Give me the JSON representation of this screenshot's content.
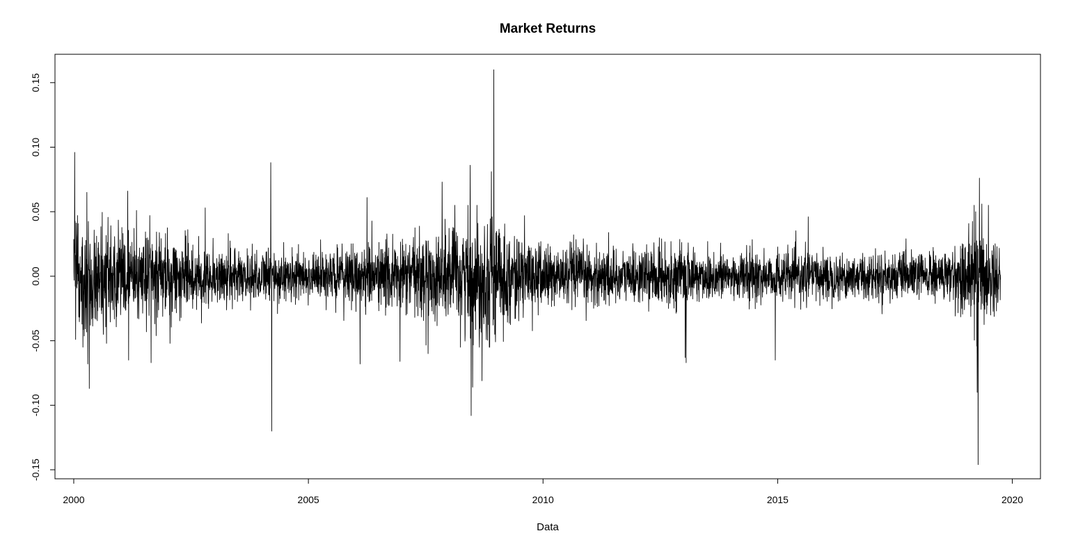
{
  "chart_data": {
    "type": "line",
    "title": "Market Returns",
    "xlabel": "Data",
    "ylabel": "",
    "xlim": [
      1999.6,
      2020.6
    ],
    "ylim": [
      -0.157,
      0.172
    ],
    "grid": false,
    "legend": "none",
    "line_color": "#000000",
    "x_ticks": [
      2000,
      2005,
      2010,
      2015,
      2020
    ],
    "x_tick_labels": [
      "2000",
      "2005",
      "2010",
      "2015",
      "2020"
    ],
    "y_ticks": [
      -0.15,
      -0.1,
      -0.05,
      0.0,
      0.05,
      0.1,
      0.15
    ],
    "y_tick_labels": [
      "-0.15",
      "-0.10",
      "-0.05",
      "0.00",
      "0.05",
      "0.10",
      "0.15"
    ],
    "series": [
      {
        "x_start": 2000.0,
        "x_end": 2019.75,
        "volatility_profile": [
          {
            "year": 2000.0,
            "sigma": 0.024
          },
          {
            "year": 2000.6,
            "sigma": 0.018
          },
          {
            "year": 2001.5,
            "sigma": 0.016
          },
          {
            "year": 2002.5,
            "sigma": 0.013
          },
          {
            "year": 2003.5,
            "sigma": 0.011
          },
          {
            "year": 2004.5,
            "sigma": 0.0095
          },
          {
            "year": 2005.5,
            "sigma": 0.01
          },
          {
            "year": 2006.3,
            "sigma": 0.012
          },
          {
            "year": 2007.5,
            "sigma": 0.016
          },
          {
            "year": 2008.3,
            "sigma": 0.022
          },
          {
            "year": 2008.8,
            "sigma": 0.024
          },
          {
            "year": 2009.5,
            "sigma": 0.014
          },
          {
            "year": 2010.5,
            "sigma": 0.012
          },
          {
            "year": 2012.0,
            "sigma": 0.01
          },
          {
            "year": 2013.0,
            "sigma": 0.011
          },
          {
            "year": 2014.5,
            "sigma": 0.0095
          },
          {
            "year": 2016.0,
            "sigma": 0.009
          },
          {
            "year": 2017.5,
            "sigma": 0.0085
          },
          {
            "year": 2018.8,
            "sigma": 0.01
          },
          {
            "year": 2019.2,
            "sigma": 0.022
          },
          {
            "year": 2019.45,
            "sigma": 0.016
          },
          {
            "year": 2019.75,
            "sigma": 0.012
          }
        ],
        "spikes": [
          {
            "x": 2000.02,
            "y": 0.096
          },
          {
            "x": 2000.04,
            "y": -0.049
          },
          {
            "x": 2000.28,
            "y": 0.065
          },
          {
            "x": 2000.3,
            "y": -0.068
          },
          {
            "x": 2000.33,
            "y": -0.087
          },
          {
            "x": 2000.7,
            "y": -0.052
          },
          {
            "x": 2001.15,
            "y": 0.066
          },
          {
            "x": 2001.17,
            "y": -0.065
          },
          {
            "x": 2001.65,
            "y": -0.067
          },
          {
            "x": 2001.62,
            "y": 0.047
          },
          {
            "x": 2002.05,
            "y": -0.052
          },
          {
            "x": 2002.8,
            "y": 0.053
          },
          {
            "x": 2004.2,
            "y": 0.088
          },
          {
            "x": 2004.22,
            "y": -0.12
          },
          {
            "x": 2006.1,
            "y": -0.068
          },
          {
            "x": 2006.25,
            "y": 0.061
          },
          {
            "x": 2006.95,
            "y": -0.066
          },
          {
            "x": 2007.55,
            "y": -0.06
          },
          {
            "x": 2007.85,
            "y": 0.073
          },
          {
            "x": 2008.45,
            "y": 0.086
          },
          {
            "x": 2008.47,
            "y": -0.108
          },
          {
            "x": 2008.5,
            "y": -0.086
          },
          {
            "x": 2008.7,
            "y": -0.081
          },
          {
            "x": 2008.9,
            "y": 0.081
          },
          {
            "x": 2008.95,
            "y": 0.16
          },
          {
            "x": 2008.97,
            "y": -0.045
          },
          {
            "x": 2013.05,
            "y": -0.067
          },
          {
            "x": 2013.03,
            "y": -0.063
          },
          {
            "x": 2014.95,
            "y": -0.065
          },
          {
            "x": 2015.65,
            "y": 0.046
          },
          {
            "x": 2019.27,
            "y": -0.146
          },
          {
            "x": 2019.25,
            "y": -0.09
          },
          {
            "x": 2019.3,
            "y": 0.076
          },
          {
            "x": 2019.22,
            "y": 0.05
          },
          {
            "x": 2019.35,
            "y": 0.056
          }
        ]
      }
    ]
  }
}
